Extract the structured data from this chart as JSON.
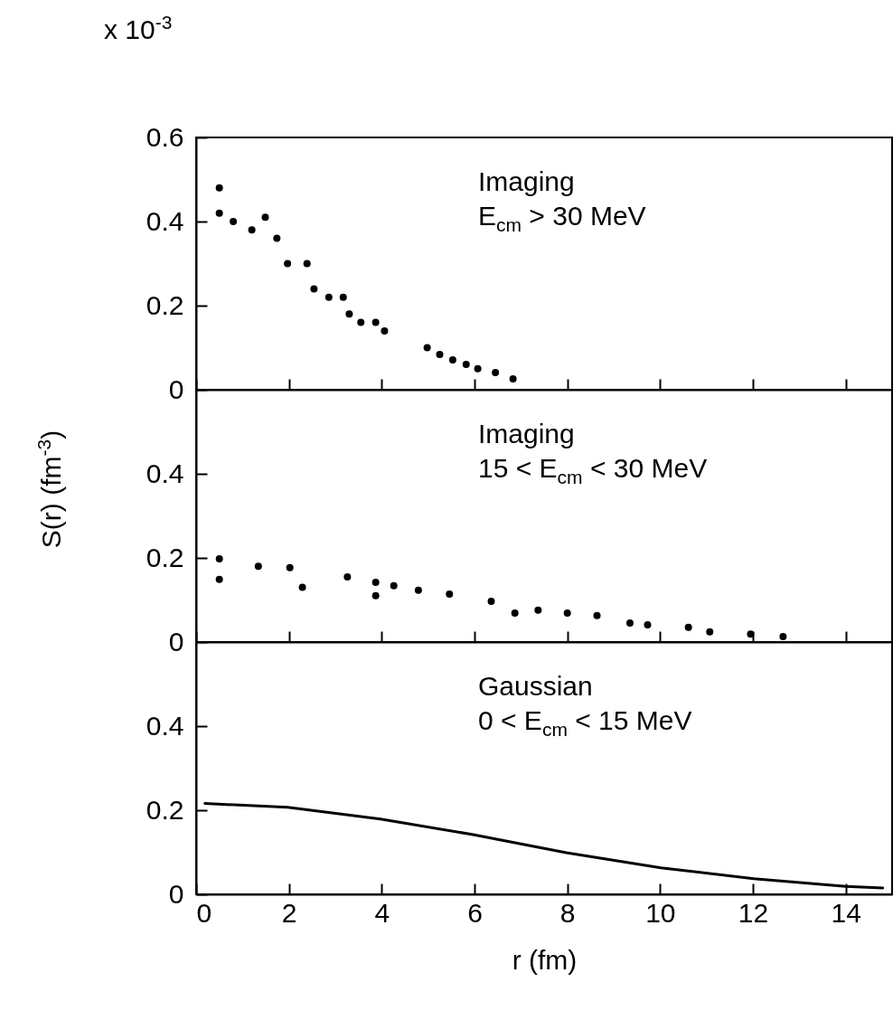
{
  "chart_data": [
    {
      "type": "scatter",
      "annotations": [
        "x 10$^{-3}$",
        "Imaging",
        "E$_{cm}$ > 30 MeV"
      ],
      "xlim": [
        0,
        15
      ],
      "xticks": [
        0,
        2,
        4,
        6,
        8,
        10,
        12,
        14
      ],
      "ylim": [
        0,
        0.6
      ],
      "yticks": [
        0,
        0.2,
        0.4,
        0.6
      ],
      "tick_labels": "y",
      "marker": "circle",
      "series": [
        {
          "color": "#000000",
          "x": [
            0.5,
            0.5,
            0.8,
            1.2,
            1.49,
            1.74,
            1.97,
            2.39,
            2.54,
            2.86,
            3.17,
            3.3,
            3.55,
            3.87,
            4.06,
            4.98,
            5.25,
            5.53,
            5.82,
            6.07,
            6.45,
            6.83
          ],
          "values": [
            0.48,
            0.42,
            0.4,
            0.38,
            0.41,
            0.36,
            0.3,
            0.3,
            0.24,
            0.22,
            0.22,
            0.18,
            0.16,
            0.16,
            0.14,
            0.1,
            0.084,
            0.071,
            0.06,
            0.05,
            0.041,
            0.026
          ]
        }
      ]
    },
    {
      "type": "scatter",
      "ylabel": "S(r) (fm$^{-3}$)",
      "annotations": [
        "Imaging",
        "15 < E$_{cm}$ < 30 MeV"
      ],
      "xlim": [
        0,
        15
      ],
      "xticks": [
        0,
        2,
        4,
        6,
        8,
        10,
        12,
        14
      ],
      "ylim": [
        0,
        0.6
      ],
      "yticks": [
        0,
        0.2,
        0.4
      ],
      "tick_labels": "y",
      "marker": "circle",
      "series": [
        {
          "color": "#000000",
          "x": [
            0.5,
            0.5,
            1.34,
            2.02,
            2.29,
            3.26,
            3.87,
            3.87,
            4.26,
            4.79,
            5.46,
            6.36,
            6.87,
            7.37,
            8.0,
            8.64,
            9.35,
            9.73,
            10.61,
            11.07,
            11.95,
            12.65
          ],
          "values": [
            0.198,
            0.149,
            0.18,
            0.177,
            0.13,
            0.155,
            0.142,
            0.11,
            0.134,
            0.123,
            0.114,
            0.097,
            0.069,
            0.076,
            0.069,
            0.063,
            0.045,
            0.041,
            0.035,
            0.024,
            0.019,
            0.013
          ]
        }
      ]
    },
    {
      "type": "line",
      "xlabel": "r (fm)",
      "annotations": [
        "Gaussian",
        "0 < E$_{cm}$ < 15 MeV"
      ],
      "xlim": [
        0,
        15
      ],
      "xticks": [
        0,
        2,
        4,
        6,
        8,
        10,
        12,
        14
      ],
      "ylim": [
        0,
        0.6
      ],
      "yticks": [
        0,
        0.2,
        0.4
      ],
      "series": [
        {
          "color": "#000000",
          "x": [
            0.19,
            1.97,
            3.97,
            5.97,
            7.98,
            10.02,
            12.02,
            14.0,
            14.8
          ],
          "values": [
            0.216,
            0.207,
            0.179,
            0.142,
            0.099,
            0.063,
            0.037,
            0.019,
            0.015
          ]
        }
      ]
    }
  ]
}
